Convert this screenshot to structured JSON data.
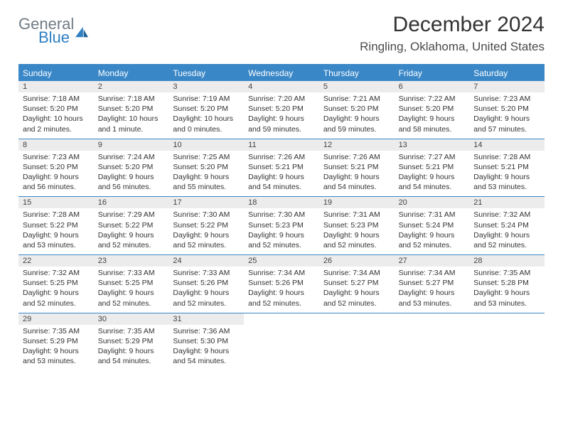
{
  "brand": {
    "line1": "General",
    "line2": "Blue"
  },
  "title": "December 2024",
  "location": "Ringling, Oklahoma, United States",
  "header_bg": "#3a87c7",
  "daynum_bg": "#ececec",
  "day_headers": [
    "Sunday",
    "Monday",
    "Tuesday",
    "Wednesday",
    "Thursday",
    "Friday",
    "Saturday"
  ],
  "weeks": [
    [
      {
        "n": "1",
        "sr": "7:18 AM",
        "ss": "5:20 PM",
        "dl": "10 hours and 2 minutes."
      },
      {
        "n": "2",
        "sr": "7:18 AM",
        "ss": "5:20 PM",
        "dl": "10 hours and 1 minute."
      },
      {
        "n": "3",
        "sr": "7:19 AM",
        "ss": "5:20 PM",
        "dl": "10 hours and 0 minutes."
      },
      {
        "n": "4",
        "sr": "7:20 AM",
        "ss": "5:20 PM",
        "dl": "9 hours and 59 minutes."
      },
      {
        "n": "5",
        "sr": "7:21 AM",
        "ss": "5:20 PM",
        "dl": "9 hours and 59 minutes."
      },
      {
        "n": "6",
        "sr": "7:22 AM",
        "ss": "5:20 PM",
        "dl": "9 hours and 58 minutes."
      },
      {
        "n": "7",
        "sr": "7:23 AM",
        "ss": "5:20 PM",
        "dl": "9 hours and 57 minutes."
      }
    ],
    [
      {
        "n": "8",
        "sr": "7:23 AM",
        "ss": "5:20 PM",
        "dl": "9 hours and 56 minutes."
      },
      {
        "n": "9",
        "sr": "7:24 AM",
        "ss": "5:20 PM",
        "dl": "9 hours and 56 minutes."
      },
      {
        "n": "10",
        "sr": "7:25 AM",
        "ss": "5:20 PM",
        "dl": "9 hours and 55 minutes."
      },
      {
        "n": "11",
        "sr": "7:26 AM",
        "ss": "5:21 PM",
        "dl": "9 hours and 54 minutes."
      },
      {
        "n": "12",
        "sr": "7:26 AM",
        "ss": "5:21 PM",
        "dl": "9 hours and 54 minutes."
      },
      {
        "n": "13",
        "sr": "7:27 AM",
        "ss": "5:21 PM",
        "dl": "9 hours and 54 minutes."
      },
      {
        "n": "14",
        "sr": "7:28 AM",
        "ss": "5:21 PM",
        "dl": "9 hours and 53 minutes."
      }
    ],
    [
      {
        "n": "15",
        "sr": "7:28 AM",
        "ss": "5:22 PM",
        "dl": "9 hours and 53 minutes."
      },
      {
        "n": "16",
        "sr": "7:29 AM",
        "ss": "5:22 PM",
        "dl": "9 hours and 52 minutes."
      },
      {
        "n": "17",
        "sr": "7:30 AM",
        "ss": "5:22 PM",
        "dl": "9 hours and 52 minutes."
      },
      {
        "n": "18",
        "sr": "7:30 AM",
        "ss": "5:23 PM",
        "dl": "9 hours and 52 minutes."
      },
      {
        "n": "19",
        "sr": "7:31 AM",
        "ss": "5:23 PM",
        "dl": "9 hours and 52 minutes."
      },
      {
        "n": "20",
        "sr": "7:31 AM",
        "ss": "5:24 PM",
        "dl": "9 hours and 52 minutes."
      },
      {
        "n": "21",
        "sr": "7:32 AM",
        "ss": "5:24 PM",
        "dl": "9 hours and 52 minutes."
      }
    ],
    [
      {
        "n": "22",
        "sr": "7:32 AM",
        "ss": "5:25 PM",
        "dl": "9 hours and 52 minutes."
      },
      {
        "n": "23",
        "sr": "7:33 AM",
        "ss": "5:25 PM",
        "dl": "9 hours and 52 minutes."
      },
      {
        "n": "24",
        "sr": "7:33 AM",
        "ss": "5:26 PM",
        "dl": "9 hours and 52 minutes."
      },
      {
        "n": "25",
        "sr": "7:34 AM",
        "ss": "5:26 PM",
        "dl": "9 hours and 52 minutes."
      },
      {
        "n": "26",
        "sr": "7:34 AM",
        "ss": "5:27 PM",
        "dl": "9 hours and 52 minutes."
      },
      {
        "n": "27",
        "sr": "7:34 AM",
        "ss": "5:27 PM",
        "dl": "9 hours and 53 minutes."
      },
      {
        "n": "28",
        "sr": "7:35 AM",
        "ss": "5:28 PM",
        "dl": "9 hours and 53 minutes."
      }
    ],
    [
      {
        "n": "29",
        "sr": "7:35 AM",
        "ss": "5:29 PM",
        "dl": "9 hours and 53 minutes."
      },
      {
        "n": "30",
        "sr": "7:35 AM",
        "ss": "5:29 PM",
        "dl": "9 hours and 54 minutes."
      },
      {
        "n": "31",
        "sr": "7:36 AM",
        "ss": "5:30 PM",
        "dl": "9 hours and 54 minutes."
      },
      null,
      null,
      null,
      null
    ]
  ],
  "labels": {
    "sunrise": "Sunrise:",
    "sunset": "Sunset:",
    "daylight": "Daylight:"
  }
}
